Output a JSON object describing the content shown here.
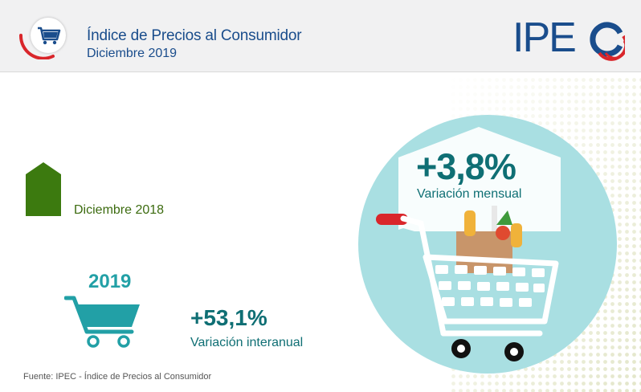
{
  "header": {
    "title": "Índice de Precios al Consumidor",
    "subtitle": "Diciembre 2019",
    "logo_text": "IPEC"
  },
  "monthly": {
    "value": "+3,8%",
    "label": "Variación mensual"
  },
  "reference": {
    "label": "Diciembre 2018"
  },
  "annual": {
    "year": "2019",
    "value": "+53,1%",
    "label": "Variación interanual"
  },
  "footer": {
    "source": "Fuente: IPEC - Índice de Precios al Consumidor"
  },
  "colors": {
    "header_bg": "#f1f1f2",
    "brand_blue": "#1a4d8c",
    "brand_red": "#d9262b",
    "teal_dark": "#0f6f74",
    "teal_light": "#22a0a6",
    "circle": "#a9dfe2",
    "green": "#3c7a0f"
  },
  "icons": [
    "shopping-cart-icon",
    "grocery-cart-icon",
    "house-arrow-icon"
  ]
}
